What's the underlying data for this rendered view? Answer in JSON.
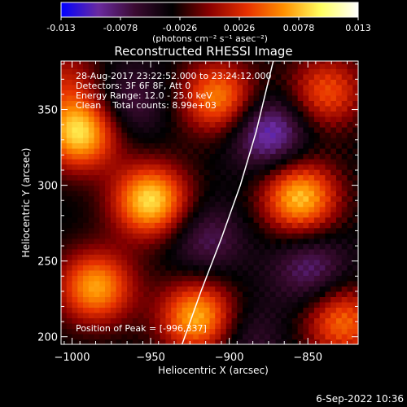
{
  "colorbar": {
    "ticks": [
      "-0.013",
      "-0.0078",
      "-0.0026",
      "0.0026",
      "0.0078",
      "0.013"
    ],
    "unit_label": "(photons cm⁻² s⁻¹ asec⁻²)"
  },
  "title": "Reconstructed RHESSI Image",
  "info_lines": [
    "28-Aug-2017 23:22:52.000 to 23:24:12.000",
    "Detectors: 3F 6F 8F, Att 0",
    "Energy Range: 12.0 - 25.0 keV",
    "Clean    Total counts: 8.99e+03"
  ],
  "peak_label": "Position of Peak = [-996,337]",
  "footer_date": "6-Sep-2022 10:36",
  "chart_data": {
    "type": "heatmap",
    "xlabel": "Heliocentric X (arcsec)",
    "ylabel": "Heliocentric Y (arcsec)",
    "xlim": [
      -1007,
      -818
    ],
    "ylim": [
      195,
      382
    ],
    "x_ticks": [
      -1000,
      -950,
      -900,
      -850
    ],
    "y_ticks": [
      200,
      250,
      300,
      350
    ],
    "x_tick_labels": [
      "−1000",
      "−950",
      "−900",
      "−850"
    ],
    "y_tick_labels": [
      "200",
      "250",
      "300",
      "350"
    ],
    "value_range": [
      -0.013,
      0.013
    ],
    "colormap": [
      "#0000ff",
      "#6a2aa0",
      "#3a0a30",
      "#000000",
      "#8a0000",
      "#e63000",
      "#ff9000",
      "#ffff60",
      "#ffffff"
    ],
    "peak": [
      -996,
      337
    ],
    "sources": [
      {
        "x": -995,
        "y": 335,
        "amp": 0.0125
      },
      {
        "x": -950,
        "y": 290,
        "amp": 0.0125
      },
      {
        "x": -985,
        "y": 233,
        "amp": 0.0105
      },
      {
        "x": -920,
        "y": 213,
        "amp": 0.0112
      },
      {
        "x": -855,
        "y": 292,
        "amp": 0.0115
      },
      {
        "x": -907,
        "y": 358,
        "amp": 0.0095
      },
      {
        "x": -838,
        "y": 362,
        "amp": 0.0075
      },
      {
        "x": -828,
        "y": 210,
        "amp": 0.0085
      },
      {
        "x": -1004,
        "y": 370,
        "amp": 0.0045
      },
      {
        "x": -915,
        "y": 265,
        "amp": -0.0042
      },
      {
        "x": -875,
        "y": 335,
        "amp": -0.0075
      },
      {
        "x": -965,
        "y": 355,
        "amp": -0.004
      },
      {
        "x": -848,
        "y": 245,
        "amp": -0.005
      },
      {
        "x": -890,
        "y": 200,
        "amp": -0.003
      }
    ],
    "limb_curve": [
      [
        -930,
        195
      ],
      [
        -918,
        230
      ],
      [
        -905,
        265
      ],
      [
        -893,
        300
      ],
      [
        -883,
        335
      ],
      [
        -872,
        382
      ]
    ]
  }
}
